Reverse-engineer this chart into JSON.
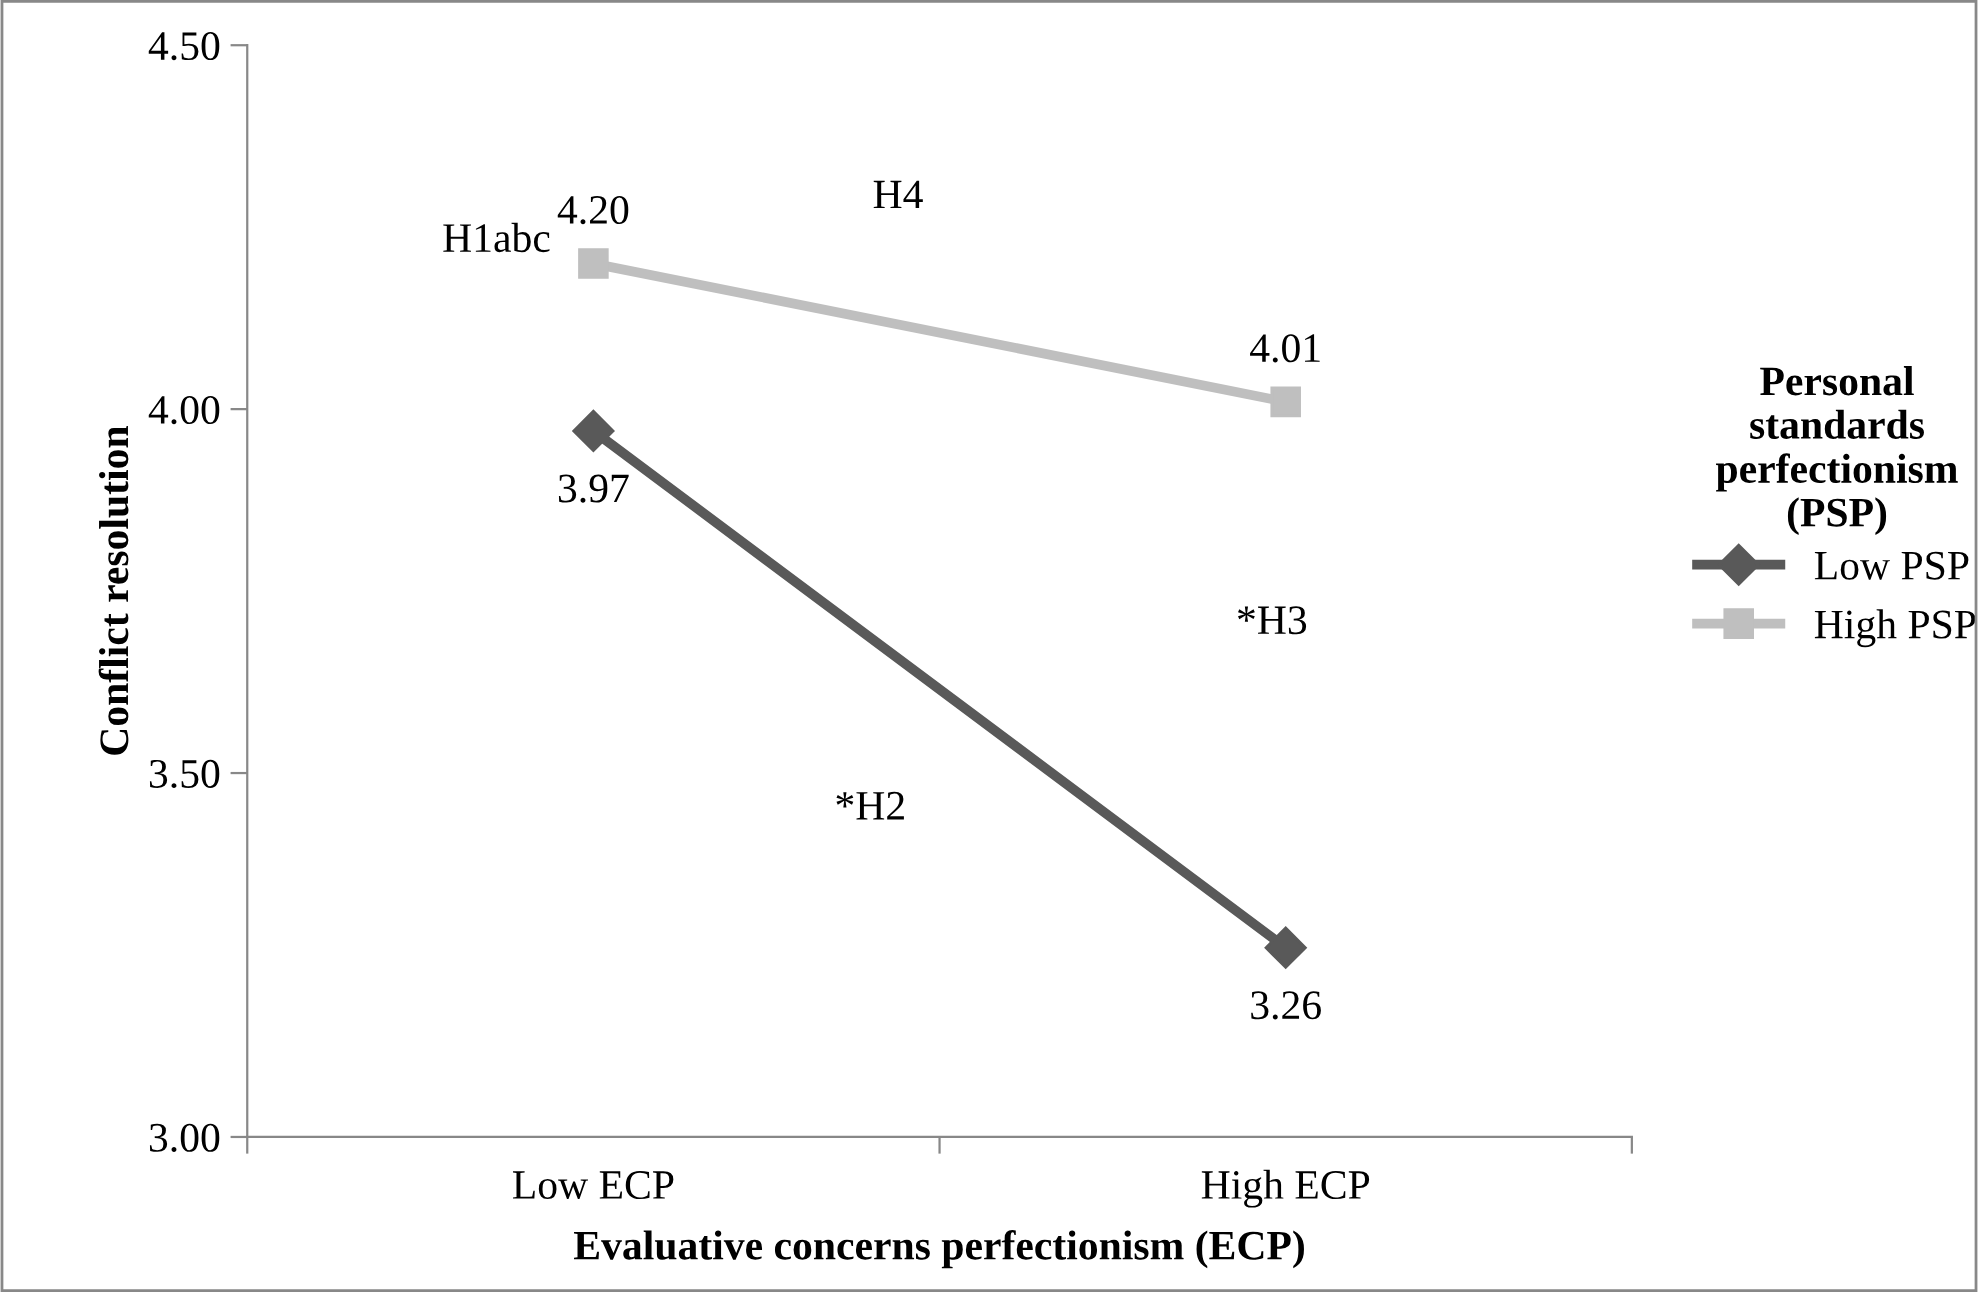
{
  "chart_data": {
    "type": "line",
    "xlabel": "Evaluative concerns perfectionism (ECP)",
    "ylabel": "Conflict resolution",
    "legend_title": "Personal standards perfectionism (PSP)",
    "categories": [
      "Low ECP",
      "High ECP"
    ],
    "series": [
      {
        "name": "Low PSP",
        "color": "#595959",
        "marker": "diamond",
        "values": [
          3.97,
          3.26
        ],
        "value_labels": [
          "3.97",
          "3.26"
        ]
      },
      {
        "name": "High PSP",
        "color": "#bfbfbf",
        "marker": "square",
        "values": [
          4.2,
          4.01
        ],
        "value_labels": [
          "4.20",
          "4.01"
        ]
      }
    ],
    "ylim": [
      3.0,
      4.5
    ],
    "yticks": [
      {
        "value": 3.0,
        "label": "3.00"
      },
      {
        "value": 3.5,
        "label": "3.50"
      },
      {
        "value": 4.0,
        "label": "4.00"
      },
      {
        "value": 4.5,
        "label": "4.50"
      }
    ],
    "annotations": [
      "H1abc",
      "H4",
      "*H3",
      "*H2"
    ],
    "grid": false,
    "legend": "right",
    "line_style": "solid"
  }
}
